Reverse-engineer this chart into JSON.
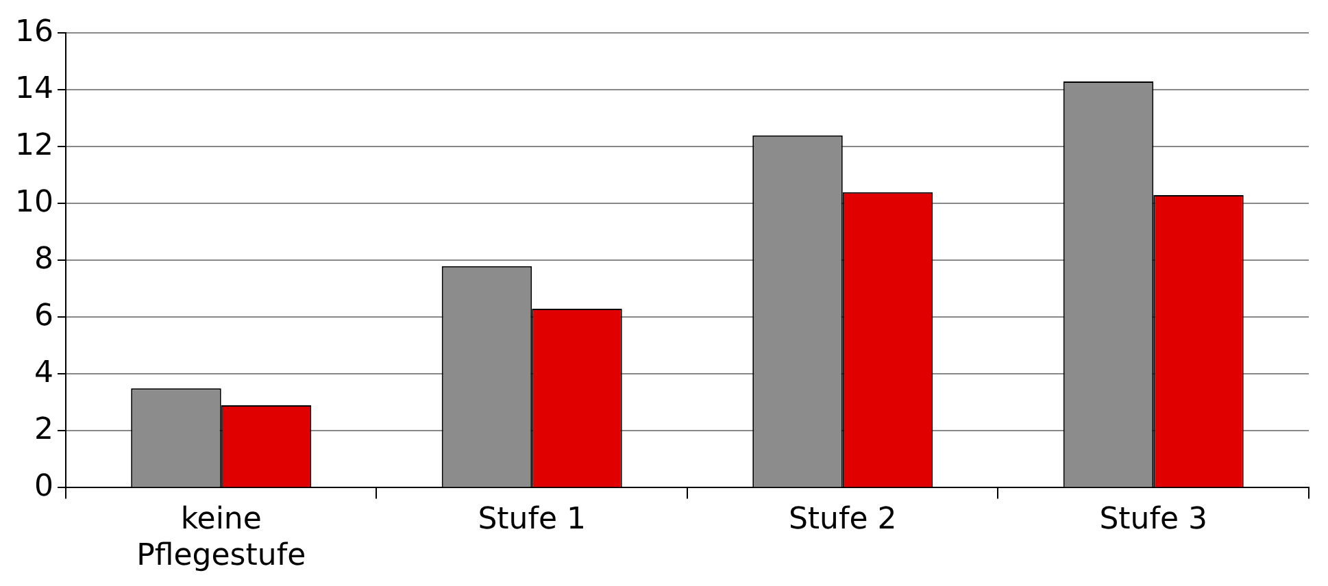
{
  "chart_data": {
    "type": "bar",
    "categories": [
      "keine Pflegestufe",
      "Stufe 1",
      "Stufe 2",
      "Stufe 3"
    ],
    "series": [
      {
        "color": "#8c8c8c",
        "values": [
          3.5,
          7.8,
          12.4,
          14.3
        ]
      },
      {
        "color": "#e00000",
        "values": [
          2.9,
          6.3,
          10.4,
          10.3
        ]
      }
    ],
    "ylim": [
      0,
      16
    ],
    "yticks": [
      0,
      2,
      4,
      6,
      8,
      10,
      12,
      14,
      16
    ],
    "grid": "y",
    "legend": false
  }
}
